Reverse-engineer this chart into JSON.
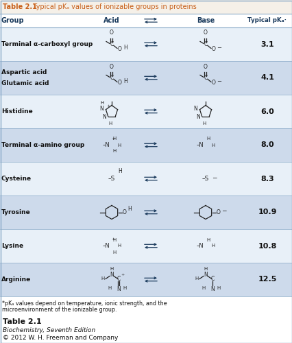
{
  "title_bold": "Table 2.1",
  "title_rest": "  Typical pKₐ values of ionizable groups in proteins",
  "rows": [
    {
      "group": "Terminal α-carboxyl group",
      "acid_img": "carboxyl_acid",
      "pk": "3.1",
      "bg": "#e8f0f8"
    },
    {
      "group": "Aspartic acid\nGlutamic acid",
      "acid_img": "carboxyl_acid",
      "pk": "4.1",
      "bg": "#cddaeb"
    },
    {
      "group": "Histidine",
      "acid_img": "histidine_acid",
      "pk": "6.0",
      "bg": "#e8f0f8"
    },
    {
      "group": "Terminal α-amino group",
      "acid_img": "amino_acid",
      "pk": "8.0",
      "bg": "#cddaeb"
    },
    {
      "group": "Cysteine",
      "acid_img": "cysteine_acid",
      "pk": "8.3",
      "bg": "#e8f0f8"
    },
    {
      "group": "Tyrosine",
      "acid_img": "tyrosine_acid",
      "pk": "10.9",
      "bg": "#cddaeb"
    },
    {
      "group": "Lysine",
      "acid_img": "lysine_acid",
      "pk": "10.8",
      "bg": "#e8f0f8"
    },
    {
      "group": "Arginine",
      "acid_img": "arginine_acid",
      "pk": "12.5",
      "bg": "#cddaeb"
    }
  ],
  "footer_text": "*pKₐ values depend on temperature, ionic strength, and the microenvironment of the ionizable group.",
  "caption_line1": "Table 2.1",
  "caption_line2": "Biochemistry, Seventh Edition",
  "caption_line3": "© 2012 W. H. Freeman and Company",
  "title_color": "#c8601a",
  "header_color": "#1a3a5c",
  "line_color": "#8aaac8",
  "struct_color": "#222222",
  "text_color": "#111111",
  "title_bg": "#f5f0e8",
  "header_bg": "#ffffff"
}
